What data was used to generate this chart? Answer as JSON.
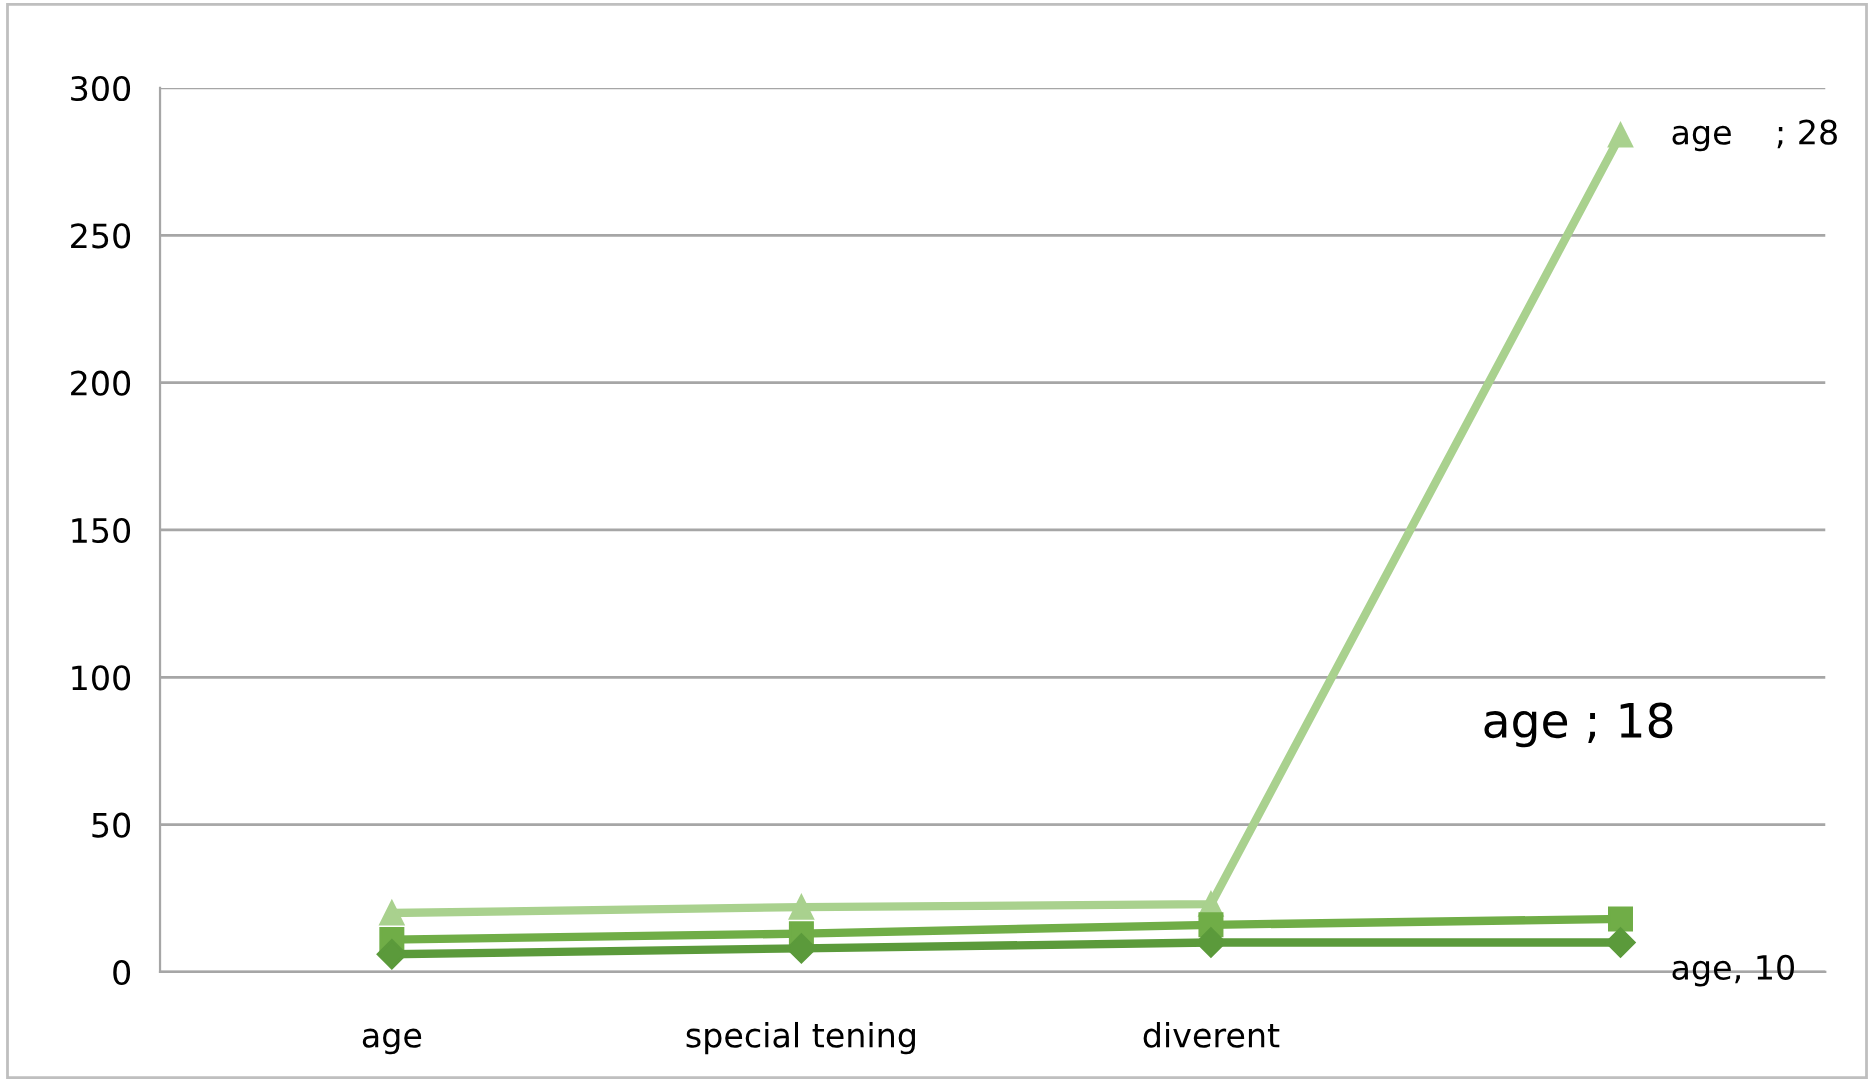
{
  "chart_data": {
    "type": "line",
    "categories": [
      "age",
      "special tening",
      "diverent",
      null
    ],
    "series": [
      {
        "color": "#5b9a3b",
        "marker": "diamond",
        "values": [
          6,
          8,
          10,
          10
        ]
      },
      {
        "color": "#70ad47",
        "marker": "square",
        "values": [
          11,
          13,
          16,
          18
        ]
      },
      {
        "color": "#a9d18e",
        "marker": "triangle",
        "values": [
          20,
          22,
          23,
          284
        ]
      }
    ],
    "annotations": [
      "age, 10",
      "age ; 18",
      "age    ; 28"
    ],
    "ylim": [
      0,
      300
    ],
    "yticks": [
      0,
      50,
      100,
      150,
      200,
      250,
      300
    ],
    "grid": "y",
    "legend": false
  }
}
